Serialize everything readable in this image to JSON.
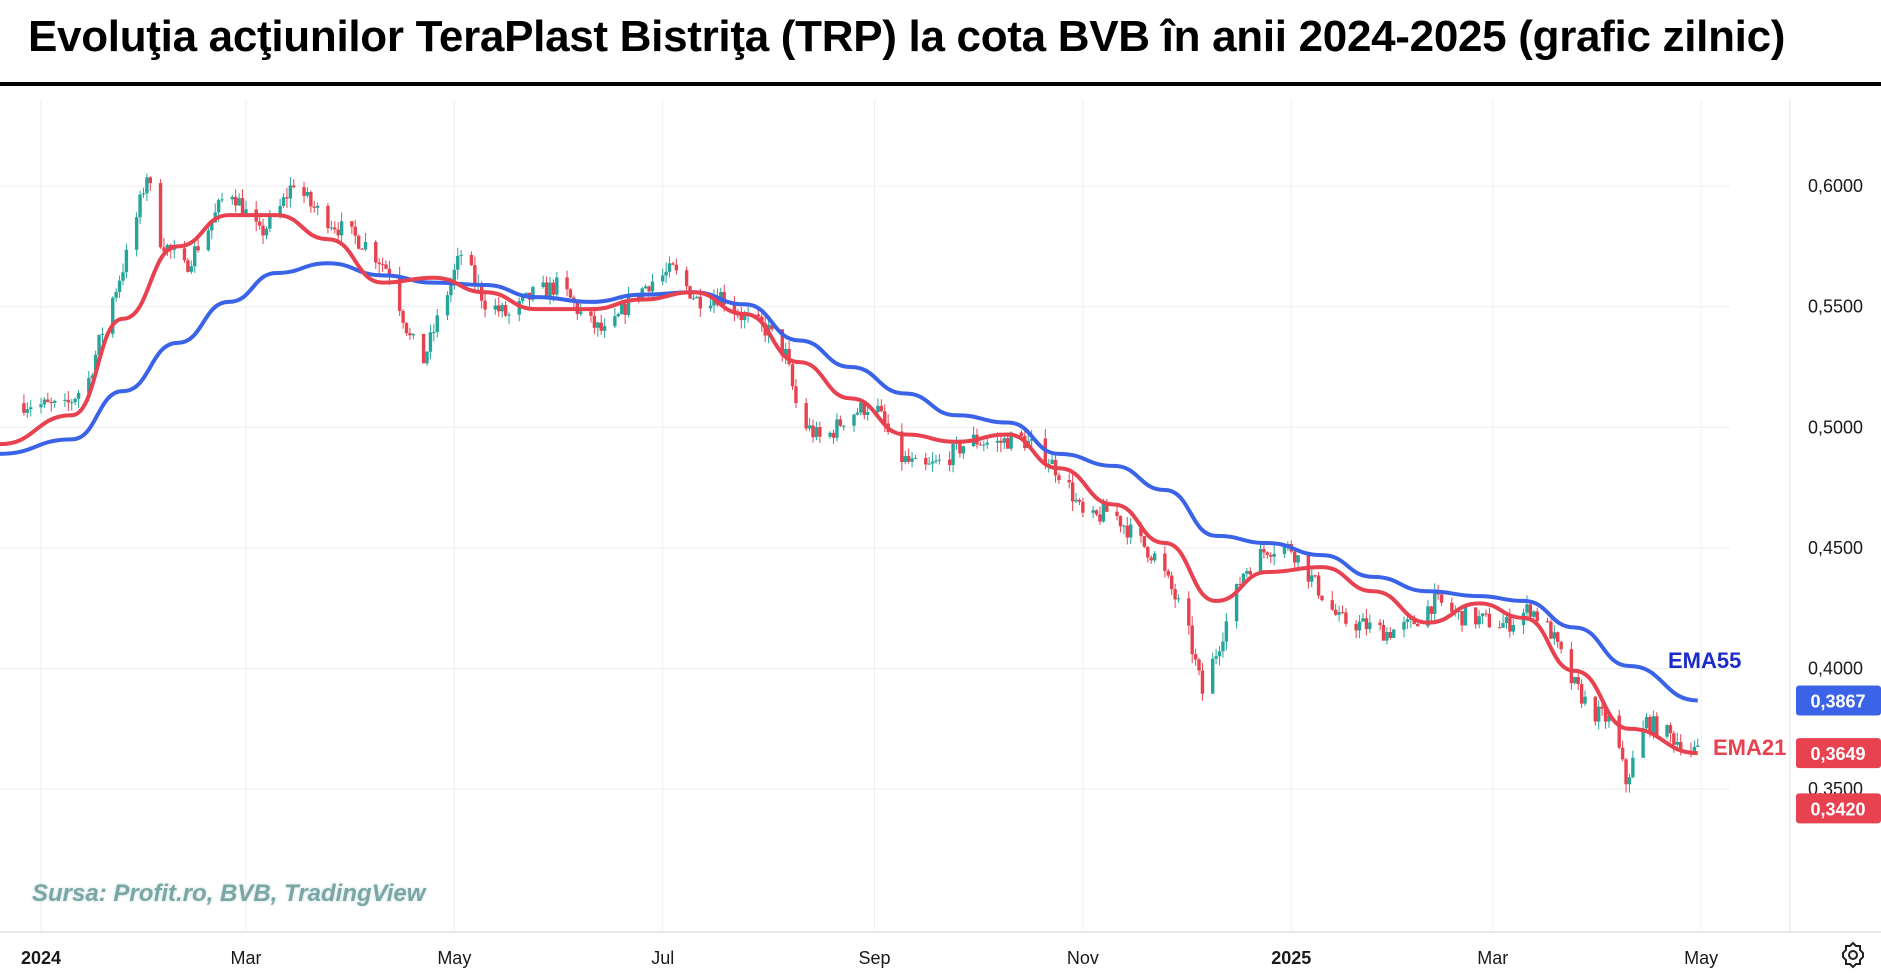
{
  "title": "Evoluţia acţiunilor TeraPlast Bistriţa (TRP) la cota BVB în anii 2024-2025 (grafic zilnic)",
  "source": "Sursa: Profit.ro, BVB, TradingView",
  "colors": {
    "up": "#26a69a",
    "down": "#e8414f",
    "ema21": "#e8414f",
    "ema55": "#3a63e8",
    "ema55_label": "#1c2cc8",
    "grid": "#eeeeee"
  },
  "icons": {
    "settings": "gear-icon"
  },
  "chart_data": {
    "type": "candlestick",
    "title": "Evoluţia acţiunilor TeraPlast Bistriţa (TRP) la cota BVB în anii 2024-2025 (grafic zilnic)",
    "y_ticks": [
      "0,6000",
      "0,5500",
      "0,5000",
      "0,4500",
      "0,4000",
      "0,3500"
    ],
    "y_tick_values": [
      0.6,
      0.55,
      0.5,
      0.45,
      0.4,
      0.35
    ],
    "ylim": [
      0.3185,
      0.6295
    ],
    "x_ticks": [
      {
        "label": "2024",
        "bold": true,
        "date": "2024-01-01"
      },
      {
        "label": "Mar",
        "bold": false,
        "date": "2024-03-01"
      },
      {
        "label": "May",
        "bold": false,
        "date": "2024-05-01"
      },
      {
        "label": "Jul",
        "bold": false,
        "date": "2024-07-01"
      },
      {
        "label": "Sep",
        "bold": false,
        "date": "2024-09-01"
      },
      {
        "label": "Nov",
        "bold": false,
        "date": "2024-11-01"
      },
      {
        "label": "2025",
        "bold": true,
        "date": "2025-01-01"
      },
      {
        "label": "Mar",
        "bold": false,
        "date": "2025-03-01"
      },
      {
        "label": "May",
        "bold": false,
        "date": "2025-05-01"
      }
    ],
    "xlim": [
      "2023-12-20",
      "2025-05-27"
    ],
    "price_tags": [
      {
        "label": "0,3867",
        "value": 0.3867,
        "color": "#3a63e8"
      },
      {
        "label": "0,3649",
        "value": 0.3649,
        "color": "#e8414f"
      },
      {
        "label": "0,3420",
        "value": 0.342,
        "color": "#e8414f"
      }
    ],
    "series": [
      {
        "name": "EMA55",
        "color": "#3a63e8",
        "points": [
          [
            "2023-12-20",
            0.489
          ],
          [
            "2024-01-10",
            0.495
          ],
          [
            "2024-01-25",
            0.515
          ],
          [
            "2024-02-10",
            0.535
          ],
          [
            "2024-02-25",
            0.552
          ],
          [
            "2024-03-10",
            0.564
          ],
          [
            "2024-03-25",
            0.568
          ],
          [
            "2024-04-10",
            0.563
          ],
          [
            "2024-04-25",
            0.56
          ],
          [
            "2024-05-10",
            0.559
          ],
          [
            "2024-05-25",
            0.554
          ],
          [
            "2024-06-10",
            0.552
          ],
          [
            "2024-06-25",
            0.555
          ],
          [
            "2024-07-10",
            0.556
          ],
          [
            "2024-07-25",
            0.551
          ],
          [
            "2024-08-10",
            0.536
          ],
          [
            "2024-08-25",
            0.525
          ],
          [
            "2024-09-10",
            0.514
          ],
          [
            "2024-09-25",
            0.505
          ],
          [
            "2024-10-10",
            0.502
          ],
          [
            "2024-10-25",
            0.489
          ],
          [
            "2024-11-10",
            0.484
          ],
          [
            "2024-11-25",
            0.474
          ],
          [
            "2024-12-10",
            0.455
          ],
          [
            "2024-12-25",
            0.452
          ],
          [
            "2025-01-10",
            0.447
          ],
          [
            "2025-01-25",
            0.438
          ],
          [
            "2025-02-10",
            0.432
          ],
          [
            "2025-02-25",
            0.43
          ],
          [
            "2025-03-10",
            0.428
          ],
          [
            "2025-03-25",
            0.417
          ],
          [
            "2025-04-10",
            0.401
          ],
          [
            "2025-04-30",
            0.3867
          ]
        ]
      },
      {
        "name": "EMA21",
        "color": "#e8414f",
        "points": [
          [
            "2023-12-20",
            0.493
          ],
          [
            "2024-01-10",
            0.505
          ],
          [
            "2024-01-25",
            0.545
          ],
          [
            "2024-02-10",
            0.575
          ],
          [
            "2024-02-25",
            0.588
          ],
          [
            "2024-03-10",
            0.588
          ],
          [
            "2024-03-25",
            0.578
          ],
          [
            "2024-04-10",
            0.56
          ],
          [
            "2024-04-25",
            0.562
          ],
          [
            "2024-05-10",
            0.556
          ],
          [
            "2024-05-25",
            0.549
          ],
          [
            "2024-06-10",
            0.549
          ],
          [
            "2024-06-25",
            0.553
          ],
          [
            "2024-07-10",
            0.556
          ],
          [
            "2024-07-25",
            0.547
          ],
          [
            "2024-08-10",
            0.527
          ],
          [
            "2024-08-25",
            0.512
          ],
          [
            "2024-09-10",
            0.497
          ],
          [
            "2024-09-25",
            0.494
          ],
          [
            "2024-10-10",
            0.497
          ],
          [
            "2024-10-25",
            0.483
          ],
          [
            "2024-11-10",
            0.468
          ],
          [
            "2024-11-25",
            0.452
          ],
          [
            "2024-12-10",
            0.428
          ],
          [
            "2024-12-25",
            0.44
          ],
          [
            "2025-01-10",
            0.442
          ],
          [
            "2025-01-25",
            0.432
          ],
          [
            "2025-02-10",
            0.419
          ],
          [
            "2025-02-25",
            0.427
          ],
          [
            "2025-03-10",
            0.421
          ],
          [
            "2025-03-25",
            0.399
          ],
          [
            "2025-04-10",
            0.375
          ],
          [
            "2025-04-30",
            0.3649
          ]
        ]
      }
    ],
    "series_labels": [
      {
        "text": "EMA55",
        "color": "#1c2cc8"
      },
      {
        "text": "EMA21",
        "color": "#e8414f"
      }
    ],
    "candle_path": [
      [
        "2023-12-27",
        0.51
      ],
      [
        "2024-01-08",
        0.508
      ],
      [
        "2024-01-15",
        0.52
      ],
      [
        "2024-01-20",
        0.545
      ],
      [
        "2024-01-27",
        0.575
      ],
      [
        "2024-02-01",
        0.605
      ],
      [
        "2024-02-05",
        0.578
      ],
      [
        "2024-02-12",
        0.566
      ],
      [
        "2024-02-20",
        0.585
      ],
      [
        "2024-02-25",
        0.6
      ],
      [
        "2024-03-05",
        0.58
      ],
      [
        "2024-03-10",
        0.588
      ],
      [
        "2024-03-15",
        0.602
      ],
      [
        "2024-03-20",
        0.592
      ],
      [
        "2024-03-28",
        0.583
      ],
      [
        "2024-04-05",
        0.576
      ],
      [
        "2024-04-12",
        0.565
      ],
      [
        "2024-04-18",
        0.537
      ],
      [
        "2024-04-22",
        0.528
      ],
      [
        "2024-04-28",
        0.552
      ],
      [
        "2024-05-03",
        0.572
      ],
      [
        "2024-05-10",
        0.552
      ],
      [
        "2024-05-17",
        0.546
      ],
      [
        "2024-05-24",
        0.555
      ],
      [
        "2024-06-01",
        0.559
      ],
      [
        "2024-06-08",
        0.545
      ],
      [
        "2024-06-15",
        0.538
      ],
      [
        "2024-06-20",
        0.55
      ],
      [
        "2024-06-27",
        0.56
      ],
      [
        "2024-07-04",
        0.565
      ],
      [
        "2024-07-11",
        0.553
      ],
      [
        "2024-07-18",
        0.555
      ],
      [
        "2024-07-25",
        0.545
      ],
      [
        "2024-08-01",
        0.54
      ],
      [
        "2024-08-06",
        0.53
      ],
      [
        "2024-08-10",
        0.503
      ],
      [
        "2024-08-17",
        0.494
      ],
      [
        "2024-08-24",
        0.505
      ],
      [
        "2024-09-01",
        0.51
      ],
      [
        "2024-09-08",
        0.488
      ],
      [
        "2024-09-15",
        0.482
      ],
      [
        "2024-09-22",
        0.487
      ],
      [
        "2024-09-29",
        0.495
      ],
      [
        "2024-10-06",
        0.493
      ],
      [
        "2024-10-13",
        0.496
      ],
      [
        "2024-10-20",
        0.49
      ],
      [
        "2024-10-27",
        0.478
      ],
      [
        "2024-11-02",
        0.46
      ],
      [
        "2024-11-09",
        0.466
      ],
      [
        "2024-11-16",
        0.455
      ],
      [
        "2024-11-23",
        0.445
      ],
      [
        "2024-12-01",
        0.42
      ],
      [
        "2024-12-06",
        0.39
      ],
      [
        "2024-12-12",
        0.415
      ],
      [
        "2024-12-18",
        0.44
      ],
      [
        "2024-12-25",
        0.45
      ],
      [
        "2025-01-01",
        0.45
      ],
      [
        "2025-01-08",
        0.435
      ],
      [
        "2025-01-15",
        0.42
      ],
      [
        "2025-01-22",
        0.418
      ],
      [
        "2025-01-29",
        0.415
      ],
      [
        "2025-02-05",
        0.418
      ],
      [
        "2025-02-12",
        0.428
      ],
      [
        "2025-02-19",
        0.422
      ],
      [
        "2025-02-26",
        0.42
      ],
      [
        "2025-03-05",
        0.418
      ],
      [
        "2025-03-12",
        0.425
      ],
      [
        "2025-03-18",
        0.415
      ],
      [
        "2025-03-24",
        0.395
      ],
      [
        "2025-03-30",
        0.382
      ],
      [
        "2025-04-05",
        0.378
      ],
      [
        "2025-04-09",
        0.353
      ],
      [
        "2025-04-15",
        0.378
      ],
      [
        "2025-04-22",
        0.372
      ],
      [
        "2025-04-30",
        0.3649
      ]
    ]
  }
}
